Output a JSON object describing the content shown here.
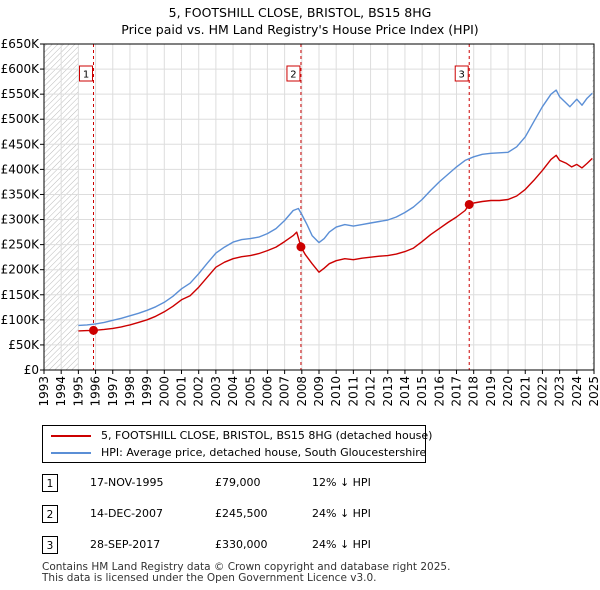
{
  "chart_data": {
    "type": "line",
    "title": "5, FOOTSHILL CLOSE, BRISTOL, BS15 8HG",
    "subtitle": "Price paid vs. HM Land Registry's House Price Index (HPI)",
    "ylim": [
      0,
      650000
    ],
    "xlim": [
      1993,
      2025
    ],
    "y_ticks": [
      0,
      50000,
      100000,
      150000,
      200000,
      250000,
      300000,
      350000,
      400000,
      450000,
      500000,
      550000,
      600000,
      650000
    ],
    "y_tick_labels": [
      "£0",
      "£50K",
      "£100K",
      "£150K",
      "£200K",
      "£250K",
      "£300K",
      "£350K",
      "£400K",
      "£450K",
      "£500K",
      "£550K",
      "£600K",
      "£650K"
    ],
    "x_ticks": [
      1993,
      1994,
      1995,
      1996,
      1997,
      1998,
      1999,
      2000,
      2001,
      2002,
      2003,
      2004,
      2005,
      2006,
      2007,
      2008,
      2009,
      2010,
      2011,
      2012,
      2013,
      2014,
      2015,
      2016,
      2017,
      2018,
      2019,
      2020,
      2021,
      2022,
      2023,
      2024,
      2025
    ],
    "x_tick_labels": [
      "1993",
      "1994",
      "1995",
      "1996",
      "1997",
      "1998",
      "1999",
      "2000",
      "2001",
      "2002",
      "2003",
      "2004",
      "2005",
      "2006",
      "2007",
      "2008",
      "2009",
      "2010",
      "2011",
      "2012",
      "2013",
      "2014",
      "2015",
      "2016",
      "2017",
      "2018",
      "2019",
      "2020",
      "2021",
      "2022",
      "2023",
      "2024",
      "2025"
    ],
    "hatched_ranges": [
      [
        1993,
        1995.0
      ],
      [
        2024.9,
        2025
      ]
    ],
    "series": [
      {
        "name": "5, FOOTSHILL CLOSE, BRISTOL, BS15 8HG (detached house)",
        "color": "#cc0000",
        "x": [
          1995.0,
          1995.5,
          1995.88,
          1996.5,
          1997,
          1997.5,
          1998,
          1998.5,
          1999,
          1999.5,
          2000,
          2000.5,
          2001,
          2001.5,
          2002,
          2002.5,
          2003,
          2003.5,
          2004,
          2004.5,
          2005,
          2005.5,
          2006,
          2006.5,
          2007,
          2007.5,
          2007.7,
          2007.95,
          2008.2,
          2008.6,
          2009.0,
          2009.3,
          2009.6,
          2010,
          2010.5,
          2011,
          2011.5,
          2012,
          2012.5,
          2013,
          2013.5,
          2014,
          2014.5,
          2015,
          2015.5,
          2016,
          2016.5,
          2017,
          2017.5,
          2017.74,
          2018,
          2018.5,
          2019,
          2019.5,
          2020,
          2020.5,
          2021,
          2021.5,
          2022,
          2022.5,
          2022.8,
          2023,
          2023.4,
          2023.7,
          2024,
          2024.3,
          2024.6,
          2024.9
        ],
        "values": [
          78000,
          78500,
          79000,
          81000,
          83000,
          86000,
          90000,
          95000,
          100000,
          107000,
          116000,
          127000,
          140000,
          148000,
          165000,
          185000,
          205000,
          215000,
          222000,
          226000,
          228000,
          232000,
          238000,
          245000,
          256000,
          268000,
          275000,
          245500,
          230000,
          212000,
          195000,
          203000,
          212000,
          218000,
          222000,
          220000,
          223000,
          225000,
          227000,
          228000,
          231000,
          236000,
          243000,
          256000,
          270000,
          282000,
          294000,
          305000,
          318000,
          330000,
          333000,
          336000,
          338000,
          338000,
          340000,
          347000,
          360000,
          378000,
          398000,
          420000,
          428000,
          418000,
          412000,
          405000,
          410000,
          403000,
          412000,
          422000
        ]
      },
      {
        "name": "HPI: Average price, detached house, South Gloucestershire",
        "color": "#5b8fd6",
        "x": [
          1995.0,
          1995.5,
          1996,
          1996.5,
          1997,
          1997.5,
          1998,
          1998.5,
          1999,
          1999.5,
          2000,
          2000.5,
          2001,
          2001.5,
          2002,
          2002.5,
          2003,
          2003.5,
          2004,
          2004.5,
          2005,
          2005.5,
          2006,
          2006.5,
          2007,
          2007.5,
          2007.8,
          2008,
          2008.3,
          2008.6,
          2009.0,
          2009.3,
          2009.6,
          2010,
          2010.5,
          2011,
          2011.5,
          2012,
          2012.5,
          2013,
          2013.5,
          2014,
          2014.5,
          2015,
          2015.5,
          2016,
          2016.5,
          2017,
          2017.5,
          2018,
          2018.5,
          2019,
          2019.5,
          2020,
          2020.5,
          2021,
          2021.5,
          2022,
          2022.5,
          2022.8,
          2023,
          2023.3,
          2023.6,
          2024,
          2024.3,
          2024.6,
          2024.9
        ],
        "values": [
          89000,
          90000,
          92000,
          95000,
          99000,
          103000,
          108000,
          113000,
          119000,
          126000,
          135000,
          147000,
          162000,
          173000,
          192000,
          213000,
          233000,
          245000,
          255000,
          260000,
          262000,
          265000,
          272000,
          282000,
          298000,
          318000,
          322000,
          310000,
          290000,
          268000,
          254000,
          262000,
          275000,
          285000,
          290000,
          287000,
          290000,
          293000,
          296000,
          299000,
          305000,
          314000,
          325000,
          340000,
          358000,
          375000,
          390000,
          405000,
          418000,
          425000,
          430000,
          432000,
          433000,
          434000,
          445000,
          465000,
          495000,
          525000,
          550000,
          558000,
          545000,
          535000,
          525000,
          540000,
          528000,
          542000,
          552000
        ]
      }
    ],
    "sales": [
      {
        "num": "1",
        "x": 1995.88,
        "price": 79000
      },
      {
        "num": "2",
        "x": 2007.95,
        "price": 245500
      },
      {
        "num": "3",
        "x": 2017.74,
        "price": 330000
      }
    ]
  },
  "legend": {
    "property_label": "5, FOOTSHILL CLOSE, BRISTOL, BS15 8HG (detached house)",
    "hpi_label": "HPI: Average price, detached house, South Gloucestershire"
  },
  "transactions": [
    {
      "num": "1",
      "date": "17-NOV-1995",
      "price": "£79,000",
      "hpi": "12% ↓ HPI"
    },
    {
      "num": "2",
      "date": "14-DEC-2007",
      "price": "£245,500",
      "hpi": "24% ↓ HPI"
    },
    {
      "num": "3",
      "date": "28-SEP-2017",
      "price": "£330,000",
      "hpi": "24% ↓ HPI"
    }
  ],
  "footer": {
    "line1": "Contains HM Land Registry data © Crown copyright and database right 2025.",
    "line2": "This data is licensed under the Open Government Licence v3.0."
  },
  "colors": {
    "property": "#cc0000",
    "hpi": "#5b8fd6",
    "grid": "#dddddd",
    "vline": "#cc0000"
  }
}
